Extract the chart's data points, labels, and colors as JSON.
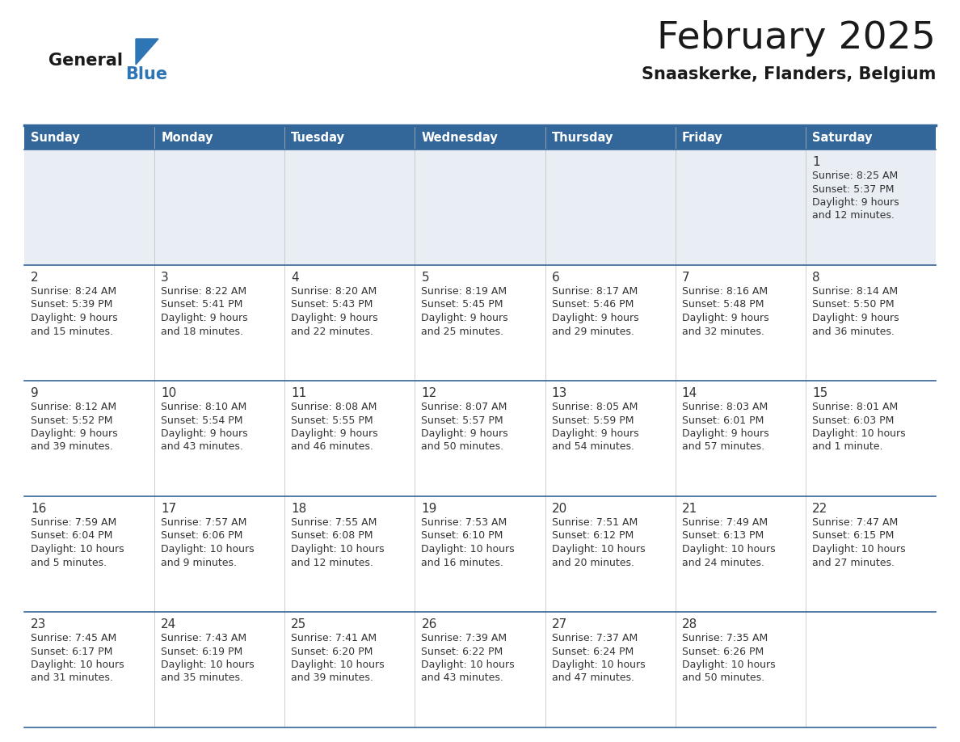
{
  "title": "February 2025",
  "subtitle": "Snaaskerke, Flanders, Belgium",
  "days_of_week": [
    "Sunday",
    "Monday",
    "Tuesday",
    "Wednesday",
    "Thursday",
    "Friday",
    "Saturday"
  ],
  "header_bg": "#336699",
  "header_text": "#FFFFFF",
  "row0_bg": "#E8EEF4",
  "row_bg": "#FFFFFF",
  "separator_color": "#336699",
  "text_color": "#333333",
  "day_num_color": "#333333",
  "logo_general_color": "#1a1a1a",
  "logo_blue_color": "#2E75B6",
  "calendar_data": [
    [
      {
        "day": null
      },
      {
        "day": null
      },
      {
        "day": null
      },
      {
        "day": null
      },
      {
        "day": null
      },
      {
        "day": null
      },
      {
        "day": 1,
        "sunrise": "8:25 AM",
        "sunset": "5:37 PM",
        "daylight_line1": "Daylight: 9 hours",
        "daylight_line2": "and 12 minutes."
      }
    ],
    [
      {
        "day": 2,
        "sunrise": "8:24 AM",
        "sunset": "5:39 PM",
        "daylight_line1": "Daylight: 9 hours",
        "daylight_line2": "and 15 minutes."
      },
      {
        "day": 3,
        "sunrise": "8:22 AM",
        "sunset": "5:41 PM",
        "daylight_line1": "Daylight: 9 hours",
        "daylight_line2": "and 18 minutes."
      },
      {
        "day": 4,
        "sunrise": "8:20 AM",
        "sunset": "5:43 PM",
        "daylight_line1": "Daylight: 9 hours",
        "daylight_line2": "and 22 minutes."
      },
      {
        "day": 5,
        "sunrise": "8:19 AM",
        "sunset": "5:45 PM",
        "daylight_line1": "Daylight: 9 hours",
        "daylight_line2": "and 25 minutes."
      },
      {
        "day": 6,
        "sunrise": "8:17 AM",
        "sunset": "5:46 PM",
        "daylight_line1": "Daylight: 9 hours",
        "daylight_line2": "and 29 minutes."
      },
      {
        "day": 7,
        "sunrise": "8:16 AM",
        "sunset": "5:48 PM",
        "daylight_line1": "Daylight: 9 hours",
        "daylight_line2": "and 32 minutes."
      },
      {
        "day": 8,
        "sunrise": "8:14 AM",
        "sunset": "5:50 PM",
        "daylight_line1": "Daylight: 9 hours",
        "daylight_line2": "and 36 minutes."
      }
    ],
    [
      {
        "day": 9,
        "sunrise": "8:12 AM",
        "sunset": "5:52 PM",
        "daylight_line1": "Daylight: 9 hours",
        "daylight_line2": "and 39 minutes."
      },
      {
        "day": 10,
        "sunrise": "8:10 AM",
        "sunset": "5:54 PM",
        "daylight_line1": "Daylight: 9 hours",
        "daylight_line2": "and 43 minutes."
      },
      {
        "day": 11,
        "sunrise": "8:08 AM",
        "sunset": "5:55 PM",
        "daylight_line1": "Daylight: 9 hours",
        "daylight_line2": "and 46 minutes."
      },
      {
        "day": 12,
        "sunrise": "8:07 AM",
        "sunset": "5:57 PM",
        "daylight_line1": "Daylight: 9 hours",
        "daylight_line2": "and 50 minutes."
      },
      {
        "day": 13,
        "sunrise": "8:05 AM",
        "sunset": "5:59 PM",
        "daylight_line1": "Daylight: 9 hours",
        "daylight_line2": "and 54 minutes."
      },
      {
        "day": 14,
        "sunrise": "8:03 AM",
        "sunset": "6:01 PM",
        "daylight_line1": "Daylight: 9 hours",
        "daylight_line2": "and 57 minutes."
      },
      {
        "day": 15,
        "sunrise": "8:01 AM",
        "sunset": "6:03 PM",
        "daylight_line1": "Daylight: 10 hours",
        "daylight_line2": "and 1 minute."
      }
    ],
    [
      {
        "day": 16,
        "sunrise": "7:59 AM",
        "sunset": "6:04 PM",
        "daylight_line1": "Daylight: 10 hours",
        "daylight_line2": "and 5 minutes."
      },
      {
        "day": 17,
        "sunrise": "7:57 AM",
        "sunset": "6:06 PM",
        "daylight_line1": "Daylight: 10 hours",
        "daylight_line2": "and 9 minutes."
      },
      {
        "day": 18,
        "sunrise": "7:55 AM",
        "sunset": "6:08 PM",
        "daylight_line1": "Daylight: 10 hours",
        "daylight_line2": "and 12 minutes."
      },
      {
        "day": 19,
        "sunrise": "7:53 AM",
        "sunset": "6:10 PM",
        "daylight_line1": "Daylight: 10 hours",
        "daylight_line2": "and 16 minutes."
      },
      {
        "day": 20,
        "sunrise": "7:51 AM",
        "sunset": "6:12 PM",
        "daylight_line1": "Daylight: 10 hours",
        "daylight_line2": "and 20 minutes."
      },
      {
        "day": 21,
        "sunrise": "7:49 AM",
        "sunset": "6:13 PM",
        "daylight_line1": "Daylight: 10 hours",
        "daylight_line2": "and 24 minutes."
      },
      {
        "day": 22,
        "sunrise": "7:47 AM",
        "sunset": "6:15 PM",
        "daylight_line1": "Daylight: 10 hours",
        "daylight_line2": "and 27 minutes."
      }
    ],
    [
      {
        "day": 23,
        "sunrise": "7:45 AM",
        "sunset": "6:17 PM",
        "daylight_line1": "Daylight: 10 hours",
        "daylight_line2": "and 31 minutes."
      },
      {
        "day": 24,
        "sunrise": "7:43 AM",
        "sunset": "6:19 PM",
        "daylight_line1": "Daylight: 10 hours",
        "daylight_line2": "and 35 minutes."
      },
      {
        "day": 25,
        "sunrise": "7:41 AM",
        "sunset": "6:20 PM",
        "daylight_line1": "Daylight: 10 hours",
        "daylight_line2": "and 39 minutes."
      },
      {
        "day": 26,
        "sunrise": "7:39 AM",
        "sunset": "6:22 PM",
        "daylight_line1": "Daylight: 10 hours",
        "daylight_line2": "and 43 minutes."
      },
      {
        "day": 27,
        "sunrise": "7:37 AM",
        "sunset": "6:24 PM",
        "daylight_line1": "Daylight: 10 hours",
        "daylight_line2": "and 47 minutes."
      },
      {
        "day": 28,
        "sunrise": "7:35 AM",
        "sunset": "6:26 PM",
        "daylight_line1": "Daylight: 10 hours",
        "daylight_line2": "and 50 minutes."
      },
      {
        "day": null
      }
    ]
  ]
}
